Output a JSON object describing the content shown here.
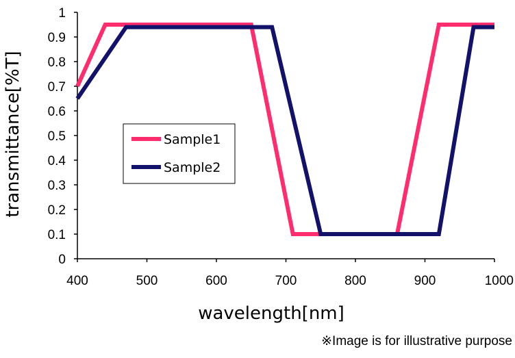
{
  "chart_data": {
    "type": "line",
    "title": "",
    "xlabel": "wavelength[nm]",
    "ylabel": "transmittance[%T]",
    "xlim": [
      400,
      1000
    ],
    "ylim": [
      0,
      1
    ],
    "x_ticks": [
      400,
      500,
      600,
      700,
      800,
      900,
      1000
    ],
    "y_ticks": [
      0,
      0.1,
      0.2,
      0.3,
      0.4,
      0.5,
      0.6,
      0.7,
      0.8,
      0.9,
      1
    ],
    "x_tick_labels": [
      "400",
      "500",
      "600",
      "700",
      "800",
      "900",
      "1000"
    ],
    "y_tick_labels": [
      "0",
      "0.1",
      "0.2",
      "0.3",
      "0.4",
      "0.5",
      "0.6",
      "0.7",
      "0.8",
      "0.9",
      "1"
    ],
    "grid": false,
    "legend_position": "center-left",
    "series": [
      {
        "name": "Sample1",
        "color": "#ff2d6e",
        "points": [
          [
            400,
            0.7
          ],
          [
            440,
            0.95
          ],
          [
            650,
            0.95
          ],
          [
            710,
            0.1
          ],
          [
            860,
            0.1
          ],
          [
            920,
            0.95
          ],
          [
            1000,
            0.95
          ]
        ]
      },
      {
        "name": "Sample2",
        "color": "#12126a",
        "points": [
          [
            400,
            0.65
          ],
          [
            470,
            0.94
          ],
          [
            680,
            0.94
          ],
          [
            750,
            0.1
          ],
          [
            920,
            0.1
          ],
          [
            970,
            0.94
          ],
          [
            1000,
            0.94
          ]
        ]
      }
    ]
  },
  "footnote": "※Image is for illustrative purpose"
}
